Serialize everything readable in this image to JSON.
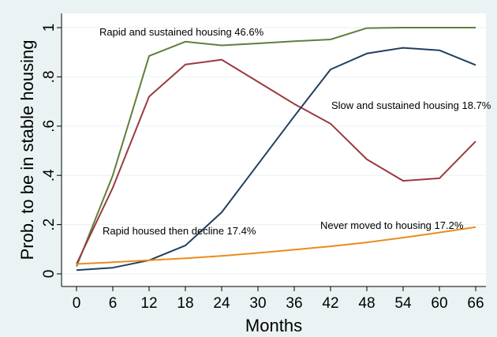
{
  "chart_data": {
    "type": "line",
    "title": "",
    "xlabel": "Months",
    "ylabel": "Prob. to be in stable housing",
    "x": [
      0,
      6,
      12,
      18,
      24,
      30,
      36,
      42,
      48,
      54,
      60,
      66
    ],
    "x_ticks": [
      "0",
      "6",
      "12",
      "18",
      "24",
      "30",
      "36",
      "42",
      "48",
      "54",
      "60",
      "66"
    ],
    "y_ticks": [
      {
        "value": 0,
        "label": "0"
      },
      {
        "value": 0.2,
        "label": ".2"
      },
      {
        "value": 0.4,
        "label": ".4"
      },
      {
        "value": 0.6,
        "label": ".6"
      },
      {
        "value": 0.8,
        "label": ".8"
      },
      {
        "value": 1,
        "label": "1"
      }
    ],
    "xlim": [
      0,
      66
    ],
    "ylim": [
      0,
      1
    ],
    "grid": "horizontal",
    "legend": "none",
    "series": [
      {
        "name": "Rapid and sustained housing 46.6%",
        "color": "#5f7f3a",
        "values": [
          0.03,
          0.4,
          0.885,
          0.943,
          0.928,
          0.936,
          0.945,
          0.952,
          0.998,
          1.0,
          1.0,
          1.0
        ]
      },
      {
        "name": "Rapid housed then decline 17.4%",
        "color": "#9b3a3f",
        "values": [
          0.04,
          0.35,
          0.72,
          0.85,
          0.87,
          0.78,
          0.69,
          0.61,
          0.465,
          0.378,
          0.388,
          0.538
        ]
      },
      {
        "name": "Slow and sustained housing 18.7%",
        "color": "#203f5f",
        "values": [
          0.015,
          0.025,
          0.055,
          0.115,
          0.25,
          0.445,
          0.64,
          0.83,
          0.895,
          0.918,
          0.908,
          0.848
        ]
      },
      {
        "name": "Never moved to housing 17.2%",
        "color": "#ea8c1e",
        "values": [
          0.04,
          0.047,
          0.055,
          0.063,
          0.073,
          0.085,
          0.098,
          0.112,
          0.128,
          0.147,
          0.168,
          0.19
        ]
      }
    ],
    "annotations": [
      {
        "series": 0,
        "text": "Rapid and sustained housing   46.6%"
      },
      {
        "series": 2,
        "text": "Slow and sustained housing  18.7%"
      },
      {
        "series": 1,
        "text": "Rapid housed then decline 17.4%"
      },
      {
        "series": 3,
        "text": "Never moved to housing  17.2%"
      }
    ]
  }
}
